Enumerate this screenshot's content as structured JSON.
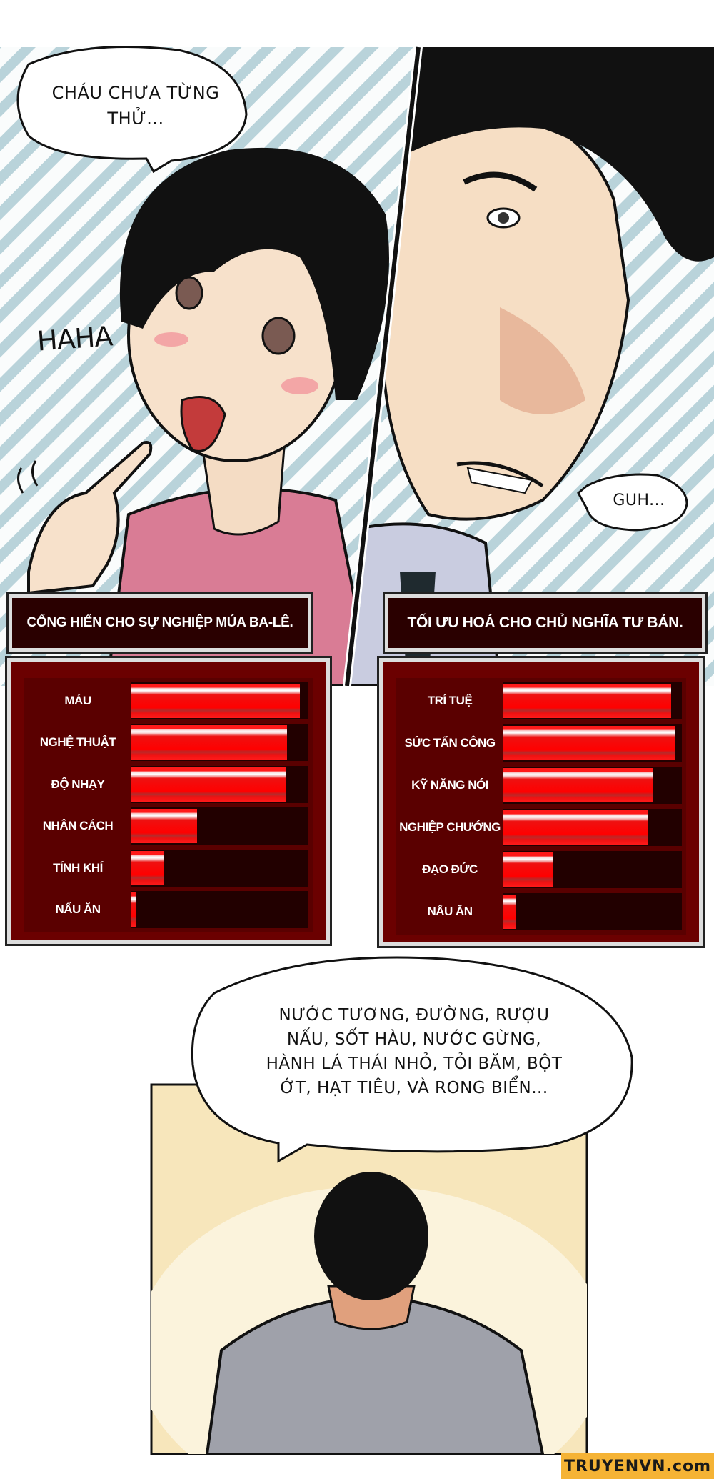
{
  "top_panel": {
    "girl_bubble": "CHÁU CHƯA TỪNG THỬ...",
    "sfx_laugh": "HAHA",
    "man_bubble": "GUH..."
  },
  "left_card": {
    "title": "CỐNG HIẾN CHO SỰ NGHIỆP MÚA BA-LÊ.",
    "stats": [
      {
        "label": "MÁU",
        "level": 0.95
      },
      {
        "label": "NGHỆ THUẬT",
        "level": 0.88
      },
      {
        "label": "ĐỘ NHẠY",
        "level": 0.87
      },
      {
        "label": "NHÂN CÁCH",
        "level": 0.37
      },
      {
        "label": "TÍNH KHÍ",
        "level": 0.18
      },
      {
        "label": "NẤU ĂN",
        "level": 0.03
      }
    ]
  },
  "right_card": {
    "title": "TỐI ƯU HOÁ CHO CHỦ NGHĨA TƯ BẢN.",
    "stats": [
      {
        "label": "TRÍ TUỆ",
        "level": 0.94
      },
      {
        "label": "SỨC TẤN CÔNG",
        "level": 0.96
      },
      {
        "label": "KỸ NĂNG NÓI",
        "level": 0.84
      },
      {
        "label": "NGHIỆP CHƯỚNG",
        "level": 0.81
      },
      {
        "label": "ĐẠO ĐỨC",
        "level": 0.28
      },
      {
        "label": "NẤU ĂN",
        "level": 0.07
      }
    ]
  },
  "bottom_panel": {
    "bubble_lines": [
      "NƯỚC TƯƠNG, ĐƯỜNG, RƯỢU",
      "NẤU, SỐT HÀU, NƯỚC GỪNG,",
      "HÀNH LÁ THÁI NHỎ, TỎI BĂM, BỘT",
      "ỚT, HẠT TIÊU, VÀ RONG BIỂN..."
    ]
  },
  "watermark": "TRUYENVN.com",
  "colors": {
    "stripe": "#b9d3da",
    "card_bg": "#2a0000",
    "bar_fill": "#ff0000",
    "bottom_bg": "#f7e6bb",
    "watermark_bg": "#f5b335"
  }
}
